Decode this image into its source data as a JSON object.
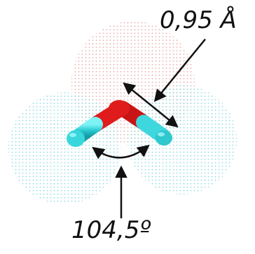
{
  "labels": {
    "bond_length": "0,95 Å",
    "bond_angle": "104,5º"
  },
  "molecule": {
    "atoms": [
      "oxygen-atom",
      "hydrogen-atom-left",
      "hydrogen-atom-right"
    ],
    "colors": {
      "oxygen": "#e31c1c",
      "hydrogen": "#35d6dc",
      "oxygen_cloud": "#e89a9a",
      "hydrogen_cloud": "#7fd8dc",
      "arrow": "#111111"
    }
  }
}
